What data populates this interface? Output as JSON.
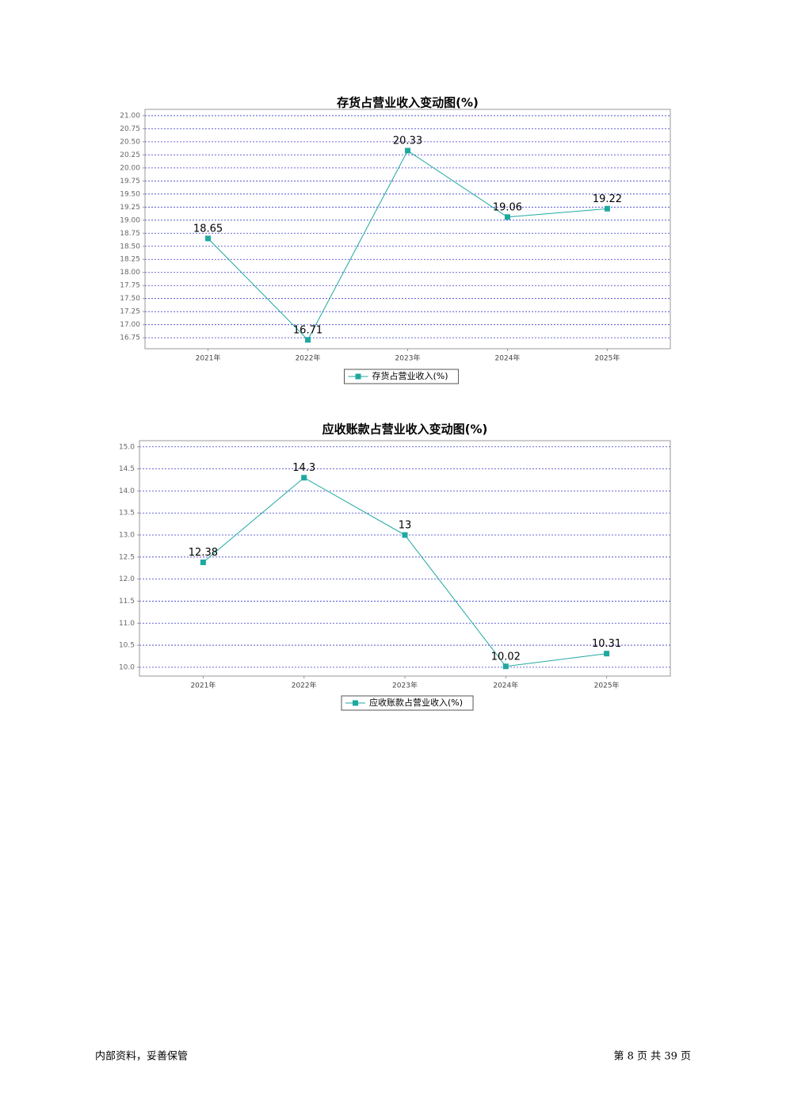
{
  "chart_data": [
    {
      "type": "line",
      "title": "存货占营业收入变动图(%)",
      "categories": [
        "2021年",
        "2022年",
        "2023年",
        "2024年",
        "2025年"
      ],
      "series": [
        {
          "name": "存货占营业收入(%)",
          "color": "#1fa8a0",
          "values": [
            18.65,
            16.71,
            20.33,
            19.06,
            19.22
          ]
        }
      ],
      "ylim": [
        16.54,
        21.12
      ],
      "yticks": [
        16.75,
        {
          "value": 17,
          "label": "17.00"
        },
        17.25,
        {
          "value": 17.5,
          "label": "17.50"
        },
        17.75,
        {
          "value": 18,
          "label": "18.00"
        },
        18.25,
        {
          "value": 18.5,
          "label": "18.50"
        },
        18.75,
        {
          "value": 19,
          "label": "19.00"
        },
        19.25,
        {
          "value": 19.5,
          "label": "19.50"
        },
        19.75,
        {
          "value": 20,
          "label": "20.00"
        },
        20.25,
        {
          "value": 20.5,
          "label": "20.50"
        },
        20.75,
        {
          "value": 21,
          "label": "21.00"
        }
      ],
      "grid": true
    },
    {
      "type": "line",
      "title": "应收账款占营业收入变动图(%)",
      "categories": [
        "2021年",
        "2022年",
        "2023年",
        "2024年",
        "2025年"
      ],
      "series": [
        {
          "name": "应收账款占营业收入(%)",
          "color": "#1fa8a0",
          "values": [
            12.38,
            14.3,
            13,
            10.02,
            10.31
          ]
        }
      ],
      "ylim": [
        9.8,
        15.14
      ],
      "yticks": [
        {
          "value": 10,
          "label": "10.0"
        },
        10.5,
        {
          "value": 11,
          "label": "11.0"
        },
        11.5,
        {
          "value": 12,
          "label": "12.0"
        },
        12.5,
        {
          "value": 13,
          "label": "13.0"
        },
        13.5,
        {
          "value": 14,
          "label": "14.0"
        },
        14.5,
        {
          "value": 15,
          "label": "15.0"
        }
      ],
      "grid": true
    }
  ],
  "footer": {
    "left": "内部资料，妥善保管",
    "right": "第 8 页   共 39 页"
  }
}
